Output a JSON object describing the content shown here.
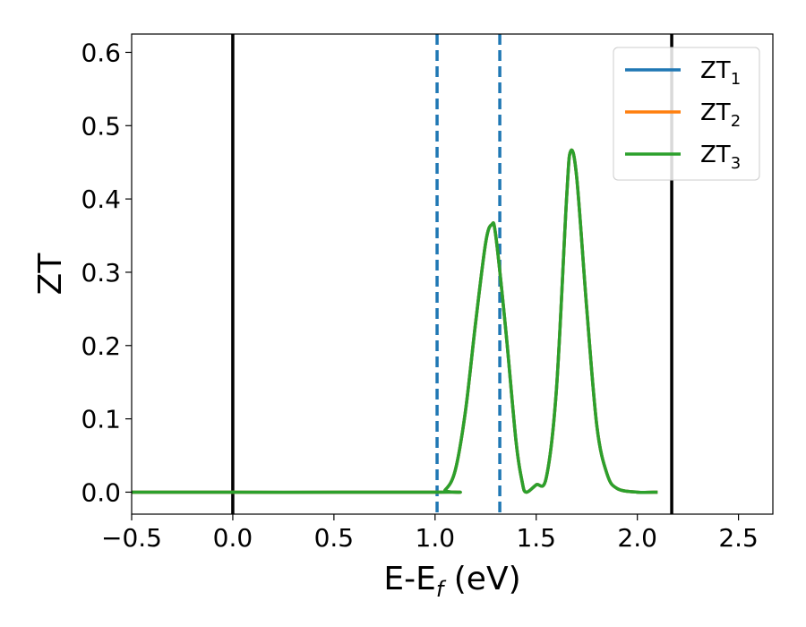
{
  "chart_data": {
    "type": "line",
    "title": "",
    "xlabel": {
      "main": "E-E",
      "sub": "f",
      "suffix": " (eV)"
    },
    "ylabel": "ZT",
    "xlim": [
      -0.5,
      2.67
    ],
    "ylim": [
      -0.03,
      0.625
    ],
    "xticks": [
      -0.5,
      0.0,
      0.5,
      1.0,
      1.5,
      2.0,
      2.5
    ],
    "xtick_labels": [
      "−0.5",
      "0.0",
      "0.5",
      "1.0",
      "1.5",
      "2.0",
      "2.5"
    ],
    "yticks": [
      0.0,
      0.1,
      0.2,
      0.3,
      0.4,
      0.5,
      0.6
    ],
    "ytick_labels": [
      "0.0",
      "0.1",
      "0.2",
      "0.3",
      "0.4",
      "0.5",
      "0.6"
    ],
    "grid": false,
    "legend_position": "top-right",
    "vertical_lines": [
      {
        "x": 0.0,
        "style": "solid",
        "color": "#000000"
      },
      {
        "x": 2.17,
        "style": "solid",
        "color": "#000000"
      },
      {
        "x": 1.01,
        "style": "dashed",
        "color": "#1f77b4"
      },
      {
        "x": 1.32,
        "style": "dashed",
        "color": "#1f77b4"
      }
    ],
    "series": [
      {
        "name": "ZT",
        "sub": "1",
        "color": "#1f77b4",
        "x": [
          -0.5,
          1.0,
          1.05,
          1.1,
          1.15,
          1.2,
          1.25,
          1.28,
          1.3,
          1.35,
          1.4,
          1.43,
          1.45,
          1.5,
          1.55,
          1.6,
          1.65,
          1.67,
          1.7,
          1.75,
          1.8,
          1.85,
          1.9,
          2.0,
          2.1
        ],
        "values": [
          0.0,
          0.0,
          0.003,
          0.03,
          0.11,
          0.23,
          0.34,
          0.365,
          0.35,
          0.22,
          0.07,
          0.015,
          0.0,
          0.01,
          0.02,
          0.14,
          0.4,
          0.465,
          0.43,
          0.25,
          0.09,
          0.025,
          0.005,
          0.0,
          0.0
        ]
      },
      {
        "name": "ZT",
        "sub": "2",
        "color": "#ff7f0e",
        "x": [
          -0.5,
          1.0,
          1.05,
          1.1,
          1.15,
          1.2,
          1.25,
          1.28,
          1.3,
          1.35,
          1.4,
          1.43,
          1.45,
          1.5,
          1.55,
          1.6,
          1.65,
          1.67,
          1.7,
          1.75,
          1.8,
          1.85,
          1.9,
          2.0,
          2.1
        ],
        "values": [
          0.0,
          0.0,
          0.003,
          0.03,
          0.11,
          0.23,
          0.34,
          0.365,
          0.35,
          0.22,
          0.07,
          0.015,
          0.0,
          0.01,
          0.02,
          0.14,
          0.4,
          0.465,
          0.43,
          0.25,
          0.09,
          0.025,
          0.005,
          0.0,
          0.0
        ]
      },
      {
        "name": "ZT",
        "sub": "3",
        "color": "#2ca02c",
        "x": [
          -0.5,
          1.0,
          1.05,
          1.1,
          1.15,
          1.2,
          1.25,
          1.28,
          1.3,
          1.35,
          1.4,
          1.43,
          1.45,
          1.5,
          1.55,
          1.6,
          1.65,
          1.67,
          1.7,
          1.75,
          1.8,
          1.85,
          1.9,
          2.0,
          2.1
        ],
        "values": [
          0.0,
          0.0,
          0.003,
          0.03,
          0.11,
          0.23,
          0.34,
          0.365,
          0.35,
          0.22,
          0.07,
          0.015,
          0.0,
          0.01,
          0.02,
          0.14,
          0.4,
          0.465,
          0.43,
          0.25,
          0.09,
          0.025,
          0.005,
          0.0,
          0.0
        ]
      }
    ]
  }
}
